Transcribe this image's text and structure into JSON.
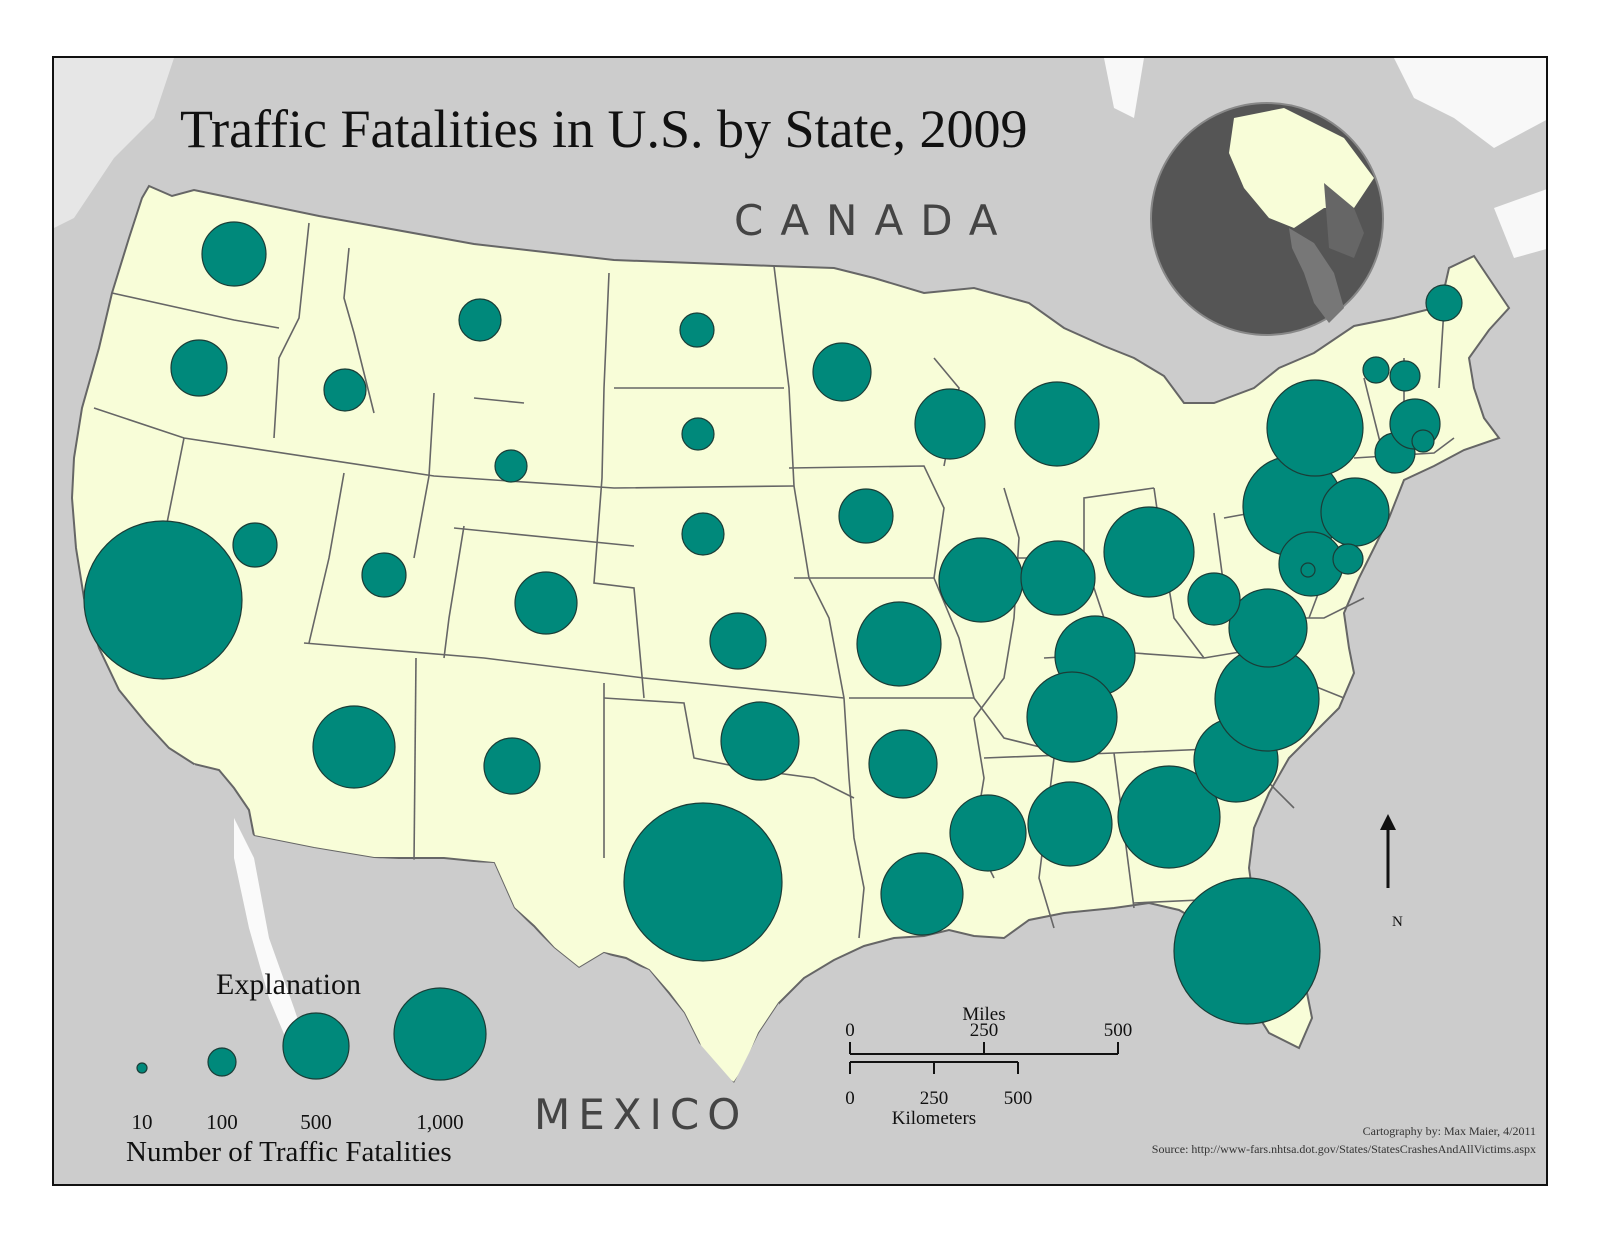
{
  "map": {
    "title": "Traffic Fatalities in U.S. by State, 2009",
    "labels": {
      "canada": "CANADA",
      "mexico": "MEXICO"
    },
    "symbol_color": "#00897b",
    "land_color": "#f8fdd8",
    "background_color": "#cccccc",
    "symbol_type": "proportional-circle"
  },
  "legend": {
    "title": "Explanation",
    "caption": "Number of Traffic Fatalities",
    "items": [
      {
        "value": 10,
        "label": "10"
      },
      {
        "value": 100,
        "label": "100"
      },
      {
        "value": 500,
        "label": "500"
      },
      {
        "value": 1000,
        "label": "1,000"
      }
    ]
  },
  "scale_bar": {
    "miles_label": "Miles",
    "miles_ticks": [
      "0",
      "250",
      "500"
    ],
    "km_label": "Kilometers",
    "km_ticks": [
      "0",
      "250",
      "500"
    ]
  },
  "north_arrow": {
    "label": "N"
  },
  "credit": "Cartography by: Max Maier, 4/2011",
  "source": "Source: http://www-fars.nhtsa.dot.gov/States/StatesCrashesAndAllVictims.aspx"
}
